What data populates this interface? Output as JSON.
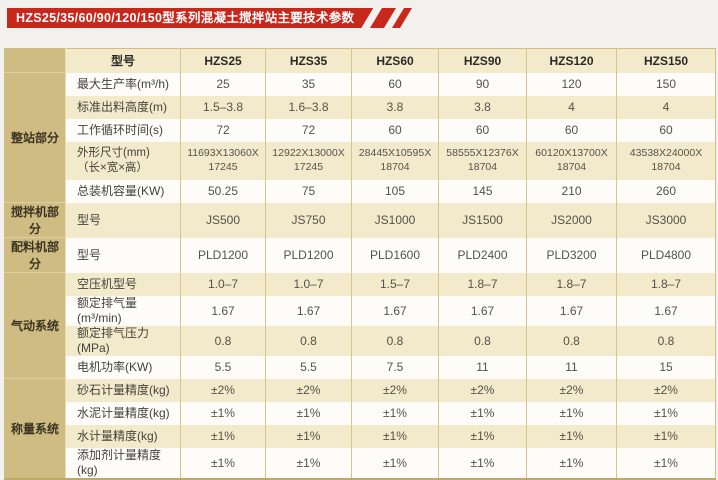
{
  "banner": {
    "title": "HZS25/35/60/90/120/150型系列混凝土搅拌站主要技术参数",
    "color": "#c8271c"
  },
  "table": {
    "model_header_label": "型号",
    "models": [
      "HZS25",
      "HZS35",
      "HZS60",
      "HZS90",
      "HZS120",
      "HZS150"
    ],
    "sections": [
      {
        "label": "整站部分",
        "rows": [
          {
            "param": "最大生产率(m³/h)",
            "values": [
              "25",
              "35",
              "60",
              "90",
              "120",
              "150"
            ]
          },
          {
            "param": "标准出料高度(m)",
            "values": [
              "1.5–3.8",
              "1.6–3.8",
              "3.8",
              "3.8",
              "4",
              "4"
            ]
          },
          {
            "param": "工作循环时间(s)",
            "values": [
              "72",
              "72",
              "60",
              "60",
              "60",
              "60"
            ]
          },
          {
            "param": "外形尺寸(mm)\n（长×宽×高）",
            "tall": true,
            "values": [
              "11693X13060X\n17245",
              "12922X13000X\n17245",
              "28445X10595X\n18704",
              "58555X12376X\n18704",
              "60120X13700X\n18704",
              "43538X24000X\n18704"
            ]
          },
          {
            "param": "总装机容量(KW)",
            "values": [
              "50.25",
              "75",
              "105",
              "145",
              "210",
              "260"
            ]
          }
        ]
      },
      {
        "label": "搅拌机部分",
        "rows": [
          {
            "param": "型号",
            "values": [
              "JS500",
              "JS750",
              "JS1000",
              "JS1500",
              "JS2000",
              "JS3000"
            ]
          }
        ]
      },
      {
        "label": "配料机部分",
        "rows": [
          {
            "param": "型号",
            "values": [
              "PLD1200",
              "PLD1200",
              "PLD1600",
              "PLD2400",
              "PLD3200",
              "PLD4800"
            ]
          }
        ]
      },
      {
        "label": "气动系统",
        "rows": [
          {
            "param": "空压机型号",
            "values": [
              "1.0–7",
              "1.0–7",
              "1.5–7",
              "1.8–7",
              "1.8–7",
              "1.8–7"
            ]
          },
          {
            "param": "额定排气量(m³/min)",
            "values": [
              "1.67",
              "1.67",
              "1.67",
              "1.67",
              "1.67",
              "1.67"
            ]
          },
          {
            "param": "额定排气压力(MPa)",
            "values": [
              "0.8",
              "0.8",
              "0.8",
              "0.8",
              "0.8",
              "0.8"
            ]
          },
          {
            "param": "电机功率(KW)",
            "values": [
              "5.5",
              "5.5",
              "7.5",
              "11",
              "11",
              "15"
            ]
          }
        ]
      },
      {
        "label": "称量系统",
        "rows": [
          {
            "param": "砂石计量精度(kg)",
            "values": [
              "±2%",
              "±2%",
              "±2%",
              "±2%",
              "±2%",
              "±2%"
            ]
          },
          {
            "param": "水泥计量精度(kg)",
            "values": [
              "±1%",
              "±1%",
              "±1%",
              "±1%",
              "±1%",
              "±1%"
            ]
          },
          {
            "param": "水计量精度(kg)",
            "values": [
              "±1%",
              "±1%",
              "±1%",
              "±1%",
              "±1%",
              "±1%"
            ]
          },
          {
            "param": "添加剂计量精度(kg)",
            "values": [
              "±1%",
              "±1%",
              "±1%",
              "±1%",
              "±1%",
              "±1%"
            ]
          }
        ]
      }
    ]
  }
}
